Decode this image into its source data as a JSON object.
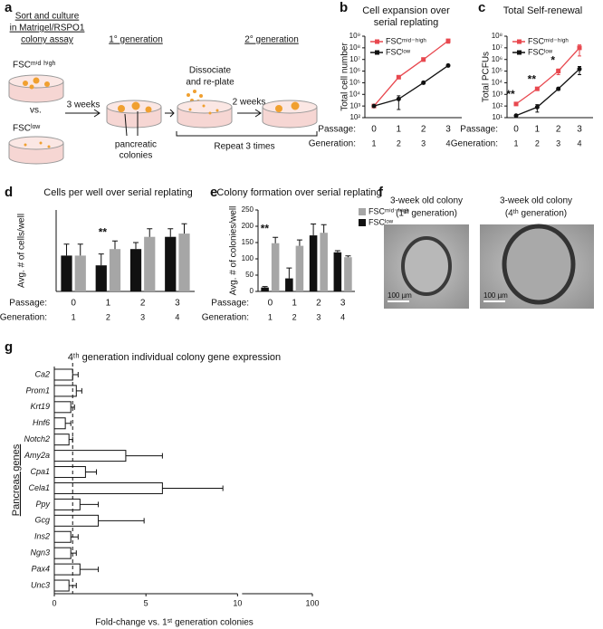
{
  "panel_labels": [
    "a",
    "b",
    "c",
    "d",
    "e",
    "f",
    "g"
  ],
  "schematic": {
    "heading": [
      "Sort and culture",
      "in Matrigel/RSPO1",
      "colony assay"
    ],
    "first_generation": "1° generation",
    "second_generation": "2° generation",
    "fsc_high": "FSCᵐⁱᵈ ʰⁱᵍʰ",
    "vs": "vs.",
    "fsc_low": "FSCˡᵒʷ",
    "three_weeks": "3 weeks",
    "dissociate": [
      "Dissociate",
      "and re-plate"
    ],
    "colonies": [
      "pancreatic",
      "colonies"
    ],
    "two_weeks": "2 weeks",
    "repeat": "Repeat 3 times"
  },
  "micrographs": [
    {
      "title": [
        "3-week old colony",
        "(1ˢᵗ generation)"
      ],
      "scale_bar": "100 µm"
    },
    {
      "title": [
        "3-week old colony",
        "(4ᵗʰ generation)"
      ],
      "scale_bar": "100 µm"
    }
  ],
  "chart_data": [
    {
      "type": "line",
      "title": [
        "Cell expansion over",
        "serial replating"
      ],
      "ylabel": "Total cell number",
      "categories": [
        "0",
        "1",
        "2",
        "3"
      ],
      "generations": [
        "1",
        "2",
        "3",
        "4"
      ],
      "x_row_labels": [
        "Passage:",
        "Generation:"
      ],
      "log_y": true,
      "ylim": [
        100,
        1000000000
      ],
      "yticks": [
        {
          "value": 100,
          "label": "10²"
        },
        {
          "value": 1000,
          "label": "10³"
        },
        {
          "value": 10000,
          "label": "10⁴"
        },
        {
          "value": 100000,
          "label": "10⁵"
        },
        {
          "value": 1000000,
          "label": "10⁶"
        },
        {
          "value": 10000000,
          "label": "10⁷"
        },
        {
          "value": 100000000,
          "label": "10⁸"
        },
        {
          "value": 1000000000,
          "label": "10⁹"
        }
      ],
      "legend": "upper left",
      "series": [
        {
          "name": "FSCᵐⁱᵈ⁻ʰⁱᵍʰ",
          "color": "#e8484f",
          "marker": "square",
          "values": [
            1000,
            300000,
            10000000,
            400000000
          ],
          "errors": [
            100,
            50000,
            3000000,
            150000000
          ]
        },
        {
          "name": "FSCˡᵒʷ",
          "color": "#111111",
          "marker": "circle",
          "values": [
            1000,
            4000,
            100000,
            3000000
          ],
          "errors": [
            100,
            3500,
            20000,
            500000
          ]
        }
      ]
    },
    {
      "type": "line",
      "title": [
        "Total Self-renewal"
      ],
      "ylabel": "Total PCFUs",
      "categories": [
        "0",
        "1",
        "2",
        "3"
      ],
      "generations": [
        "1",
        "2",
        "3",
        "4"
      ],
      "x_row_labels": [
        "Passage:",
        "Generation:"
      ],
      "log_y": true,
      "ylim": [
        10,
        100000000
      ],
      "yticks": [
        {
          "value": 10,
          "label": "10¹"
        },
        {
          "value": 100,
          "label": "10²"
        },
        {
          "value": 1000,
          "label": "10³"
        },
        {
          "value": 10000,
          "label": "10⁴"
        },
        {
          "value": 100000,
          "label": "10⁵"
        },
        {
          "value": 1000000,
          "label": "10⁶"
        },
        {
          "value": 10000000,
          "label": "10⁷"
        },
        {
          "value": 100000000,
          "label": "10⁸"
        }
      ],
      "legend": "upper left",
      "annotations": [
        {
          "text": "**",
          "category": "0"
        },
        {
          "text": "**",
          "category": "1"
        },
        {
          "text": "*",
          "category": "2"
        }
      ],
      "series": [
        {
          "name": "FSCᵐⁱᵈ⁻ʰⁱᵍʰ",
          "color": "#e8484f",
          "marker": "square",
          "values": [
            150,
            3000,
            100000,
            10000000
          ],
          "errors": [
            30,
            500,
            50000,
            8000000
          ]
        },
        {
          "name": "FSCˡᵒʷ",
          "color": "#111111",
          "marker": "circle",
          "values": [
            15,
            80,
            3000,
            150000
          ],
          "errors": [
            3,
            50,
            800,
            100000
          ]
        }
      ]
    },
    {
      "type": "bar",
      "title": [
        "Cells per well over serial replating"
      ],
      "ylabel": "Avg. # of cells/well",
      "categories": [
        "0",
        "1",
        "2",
        "3"
      ],
      "generations": [
        "1",
        "2",
        "3",
        "4"
      ],
      "x_row_labels": [
        "Passage:",
        "Generation:"
      ],
      "ylim": [
        0,
        100
      ],
      "annotations": [
        {
          "text": "**",
          "category": "1"
        }
      ],
      "series": [
        {
          "color": "#111111",
          "values": [
            44,
            32,
            52,
            67
          ],
          "errors": [
            14,
            14,
            8,
            10
          ]
        },
        {
          "color": "#a6a6a6",
          "values": [
            44,
            52,
            67,
            71
          ],
          "errors": [
            14,
            10,
            10,
            12
          ]
        }
      ]
    },
    {
      "type": "bar",
      "title": [
        "Colony formation over serial replating"
      ],
      "ylabel": "Avg. # of colonies/well",
      "categories": [
        "0",
        "1",
        "2",
        "3"
      ],
      "generations": [
        "1",
        "2",
        "3",
        "4"
      ],
      "x_row_labels": [
        "Passage:",
        "Generation:"
      ],
      "ylim": [
        0,
        250
      ],
      "yticks": [
        0,
        50,
        100,
        150,
        200,
        250
      ],
      "legend": "upper right",
      "annotations": [
        {
          "text": "**",
          "category": "0"
        }
      ],
      "series": [
        {
          "name": "FSCˡᵒʷ",
          "color": "#111111",
          "values": [
            12,
            40,
            172,
            120
          ],
          "errors": [
            3,
            32,
            35,
            5
          ]
        },
        {
          "name": "FSCᵐⁱᵈ⁻ʰⁱᵍʰ",
          "color": "#a6a6a6",
          "values": [
            148,
            140,
            180,
            105
          ],
          "errors": [
            18,
            18,
            25,
            4
          ]
        }
      ]
    },
    {
      "type": "hbar",
      "title": "4ᵗʰ generation individual colony gene expression",
      "ylabel": "Pancreas genes",
      "xlabel": "Fold-change vs. 1ˢᵗ generation colonies",
      "categories": [
        "Ca2",
        "Prom1",
        "Krt19",
        "Hnf6",
        "Notch2",
        "Amy2a",
        "Cpa1",
        "Cela1",
        "Ppy",
        "Gcg",
        "Ins2",
        "Ngn3",
        "Pax4",
        "Unc3"
      ],
      "values": [
        1.0,
        1.2,
        0.9,
        0.6,
        0.8,
        3.9,
        1.7,
        5.9,
        1.4,
        2.4,
        0.9,
        0.9,
        1.4,
        0.8
      ],
      "errors": [
        0.3,
        0.3,
        0.2,
        0.3,
        0.2,
        2.0,
        0.6,
        3.3,
        1.0,
        2.5,
        0.4,
        0.3,
        1.0,
        0.4
      ],
      "xlim": [
        0,
        100
      ],
      "xticks": [
        0,
        5,
        10,
        100
      ],
      "axis_break": 10,
      "reference_line": 1
    }
  ]
}
